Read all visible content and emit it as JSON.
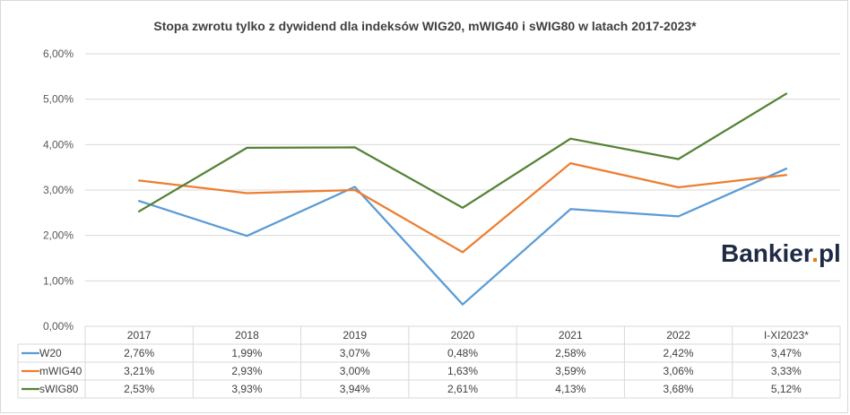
{
  "chart_data": {
    "type": "line",
    "title": "Stopa zwrotu tylko z dywidend dla indeksów WIG20, mWIG40 i sWIG80 w latach 2017-2023*",
    "categories": [
      "2017",
      "2018",
      "2019",
      "2020",
      "2021",
      "2022",
      "I-XI2023*"
    ],
    "y_ticks": [
      "0,00%",
      "1,00%",
      "2,00%",
      "3,00%",
      "4,00%",
      "5,00%",
      "6,00%"
    ],
    "ylim": [
      0,
      6
    ],
    "grid": true,
    "legend": "data-table",
    "series": [
      {
        "name": "W20",
        "color": "#5b9bd5",
        "values": [
          2.76,
          1.99,
          3.07,
          0.48,
          2.58,
          2.42,
          3.47
        ],
        "labels": [
          "2,76%",
          "1,99%",
          "3,07%",
          "0,48%",
          "2,58%",
          "2,42%",
          "3,47%"
        ]
      },
      {
        "name": "mWIG40",
        "color": "#ed7d31",
        "values": [
          3.21,
          2.93,
          3.0,
          1.63,
          3.59,
          3.06,
          3.33
        ],
        "labels": [
          "3,21%",
          "2,93%",
          "3,00%",
          "1,63%",
          "3,59%",
          "3,06%",
          "3,33%"
        ]
      },
      {
        "name": "sWIG80",
        "color": "#548235",
        "values": [
          2.53,
          3.93,
          3.94,
          2.61,
          4.13,
          3.68,
          5.12
        ],
        "labels": [
          "2,53%",
          "3,93%",
          "3,94%",
          "2,61%",
          "4,13%",
          "3,68%",
          "5,12%"
        ]
      }
    ]
  },
  "logo": {
    "text": "Bankier.pl",
    "color": "#1f2a44",
    "dot_color": "#e07b16"
  }
}
